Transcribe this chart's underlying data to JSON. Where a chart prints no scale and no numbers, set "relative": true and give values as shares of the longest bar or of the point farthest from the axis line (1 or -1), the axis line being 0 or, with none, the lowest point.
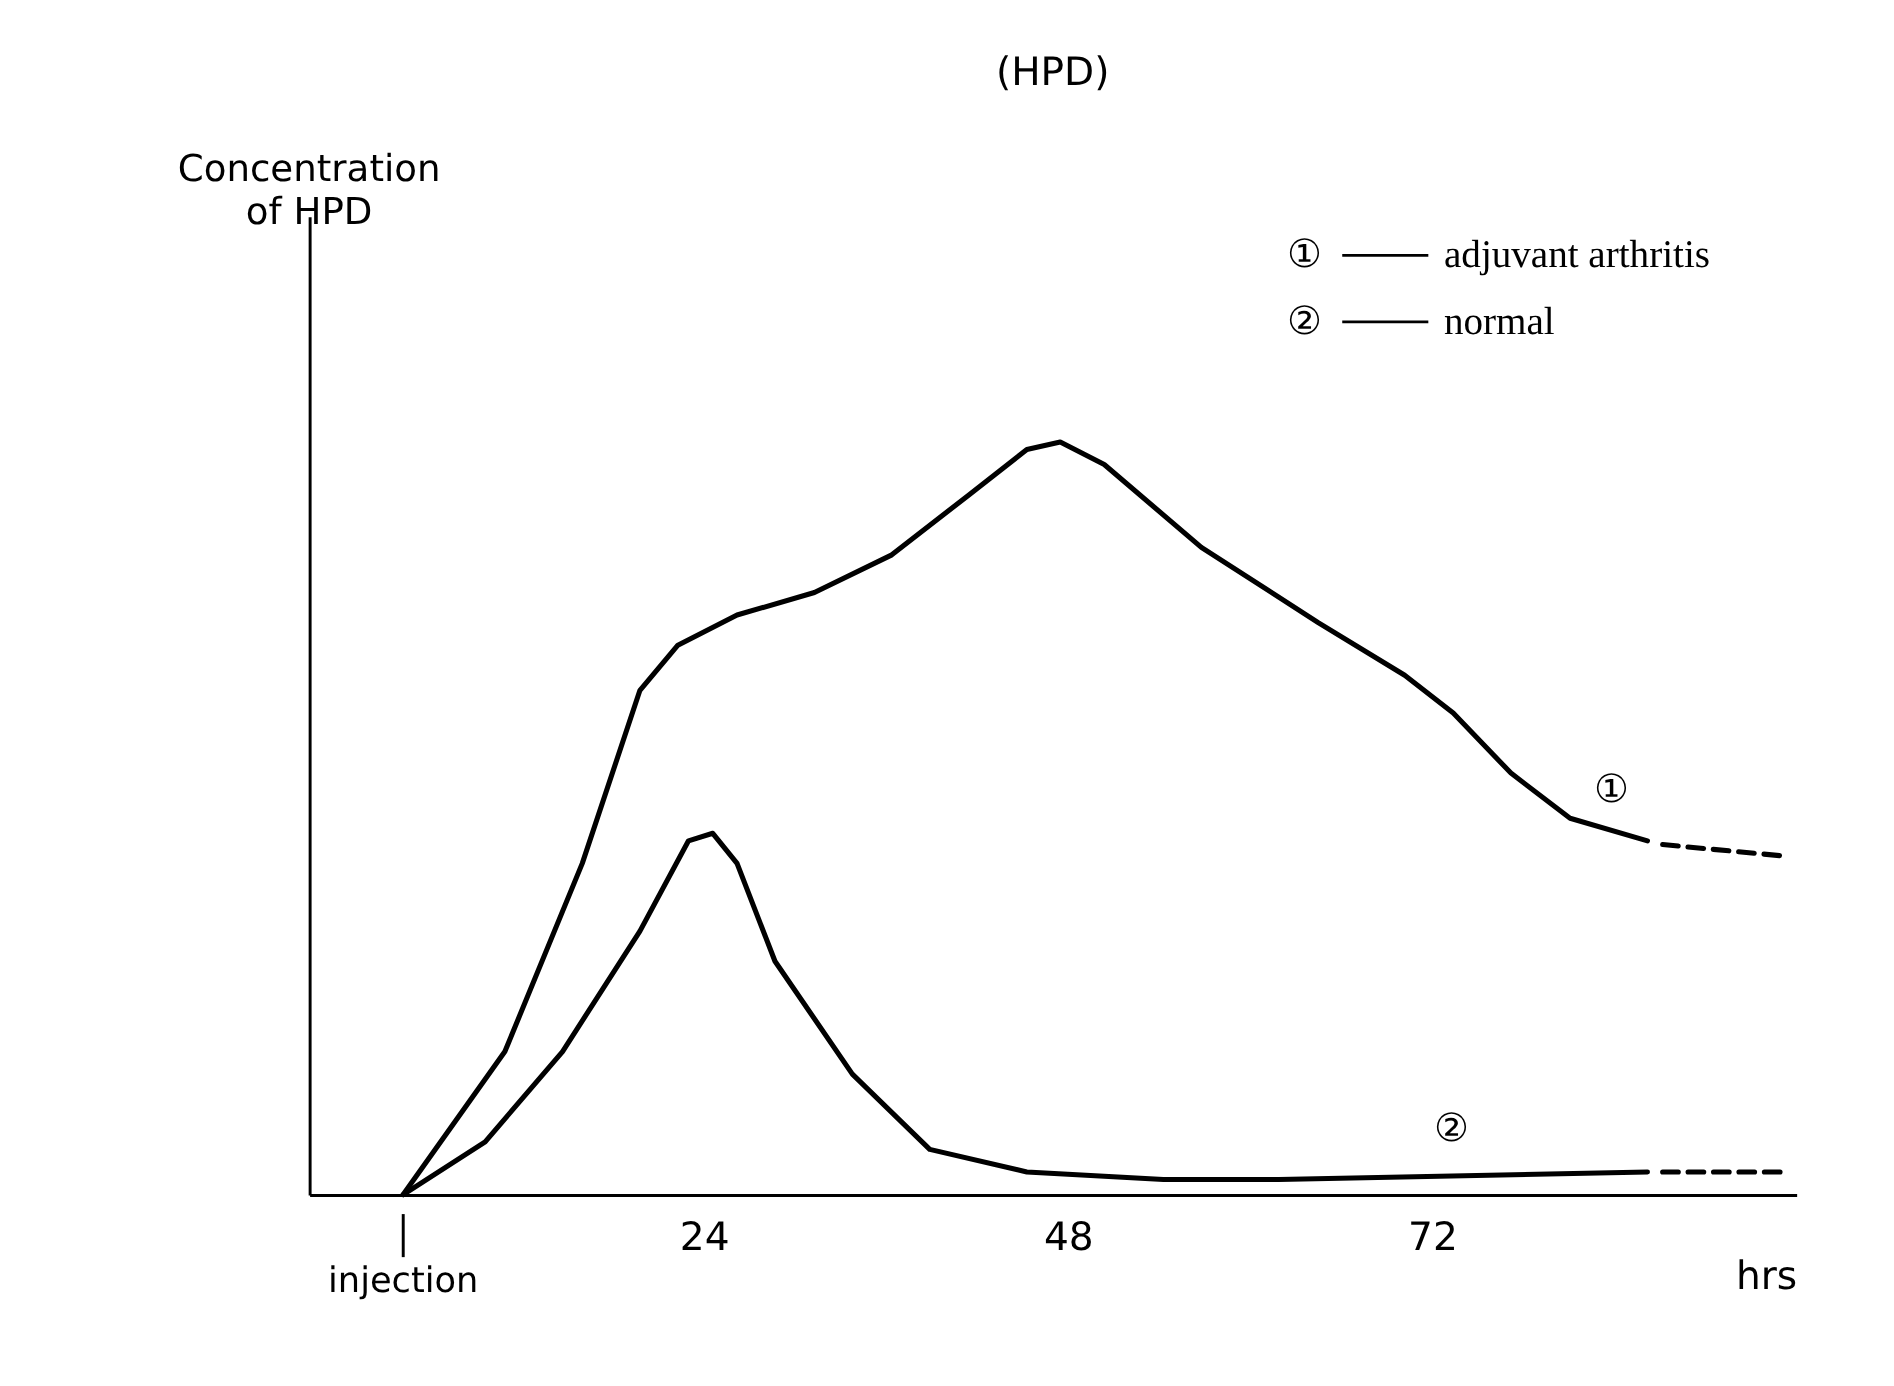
{
  "chart_data": {
    "type": "line",
    "title": "(HPD)",
    "xlabel": "hrs",
    "relative": true,
    "xlim": [
      -2,
      96
    ],
    "xticks": [
      24,
      48,
      72
    ],
    "grid": false,
    "legend": "top right",
    "series": [
      {
        "name": "adjuvant arthritis",
        "color": "#000000",
        "line_style": "solid",
        "x": [
          4.2,
          10.9,
          16.0,
          19.8,
          22.3,
          26.2,
          31.3,
          36.4,
          41.5,
          45.3,
          47.5,
          50.4,
          56.8,
          64.5,
          70.2,
          73.4,
          77.2,
          81.1,
          86.2
        ],
        "values": [
          0,
          0.19,
          0.44,
          0.67,
          0.73,
          0.77,
          0.8,
          0.85,
          0.93,
          0.99,
          1.0,
          0.97,
          0.86,
          0.76,
          0.69,
          0.64,
          0.56,
          0.5,
          0.47
        ]
      },
      {
        "name": "normal",
        "color": "#000000",
        "line_style": "solid",
        "x": [
          4.2,
          9.6,
          14.7,
          19.8,
          23.0,
          24.6,
          26.2,
          28.7,
          33.8,
          38.9,
          45.3,
          54.3,
          61.9,
          86.2
        ],
        "values": [
          0,
          0.07,
          0.19,
          0.35,
          0.47,
          0.48,
          0.44,
          0.31,
          0.16,
          0.06,
          0.03,
          0.02,
          0.02,
          0.03
        ]
      },
      {
        "type": "line",
        "color": "#000000",
        "line_style": "dashed",
        "x": [
          87.2,
          95.1
        ],
        "values": [
          0.465,
          0.45
        ]
      },
      {
        "type": "line",
        "color": "#000000",
        "line_style": "dashed",
        "x": [
          87.2,
          95.1
        ],
        "values": [
          0.03,
          0.03
        ]
      }
    ],
    "annotations": [
      "①",
      "②",
      "Concentration\nof HPD",
      {
        "text": "injection",
        "x": 4.2,
        "y": 0
      }
    ]
  }
}
